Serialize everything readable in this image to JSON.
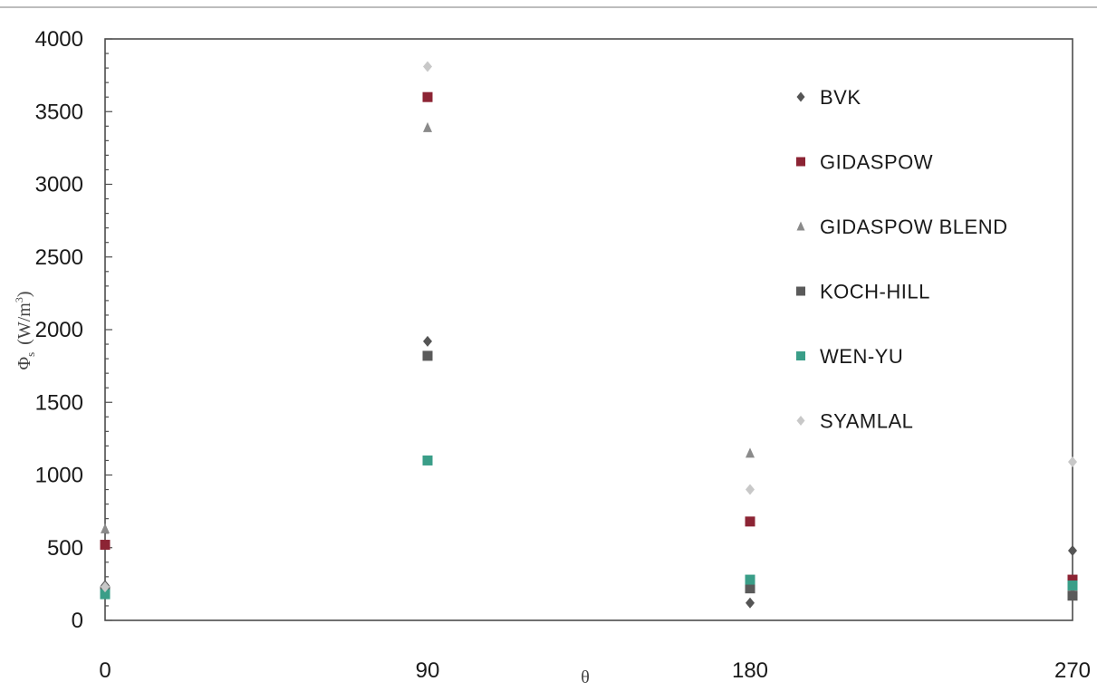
{
  "chart_data": {
    "type": "scatter",
    "xlabel": "θ",
    "ylabel": "Φ",
    "ylabel_subscript": "s",
    "ylabel_unit": "(W/m",
    "ylabel_unit_sup": "3",
    "ylabel_unit_close": ")",
    "x_ticks": [
      0,
      90,
      180,
      270
    ],
    "y_ticks": [
      0,
      500,
      1000,
      1500,
      2000,
      2500,
      3000,
      3500,
      4000
    ],
    "xlim": [
      0,
      270
    ],
    "ylim": [
      0,
      4000
    ],
    "grid": false,
    "legend_position": "right",
    "series": [
      {
        "name": "BVK",
        "marker": "diamond",
        "color": "#555555",
        "points": [
          [
            0,
            240
          ],
          [
            90,
            1920
          ],
          [
            180,
            120
          ],
          [
            270,
            480
          ]
        ]
      },
      {
        "name": "GIDASPOW",
        "marker": "square",
        "color": "#8c2434",
        "points": [
          [
            0,
            520
          ],
          [
            90,
            3600
          ],
          [
            180,
            680
          ],
          [
            270,
            280
          ]
        ]
      },
      {
        "name": "GIDASPOW BLEND",
        "marker": "triangle",
        "color": "#8a8a8a",
        "points": [
          [
            0,
            630
          ],
          [
            90,
            3390
          ],
          [
            180,
            1150
          ],
          [
            270,
            200
          ]
        ]
      },
      {
        "name": "KOCH-HILL",
        "marker": "square",
        "color": "#5a5a5a",
        "points": [
          [
            0,
            200
          ],
          [
            90,
            1820
          ],
          [
            180,
            220
          ],
          [
            270,
            170
          ]
        ]
      },
      {
        "name": "WEN-YU",
        "marker": "square",
        "color": "#3a9e88",
        "points": [
          [
            0,
            180
          ],
          [
            90,
            1100
          ],
          [
            180,
            280
          ],
          [
            270,
            240
          ]
        ]
      },
      {
        "name": "SYAMLAL",
        "marker": "diamond",
        "color": "#c8c8c8",
        "points": [
          [
            0,
            230
          ],
          [
            90,
            3810
          ],
          [
            180,
            900
          ],
          [
            270,
            1090
          ]
        ]
      }
    ]
  }
}
